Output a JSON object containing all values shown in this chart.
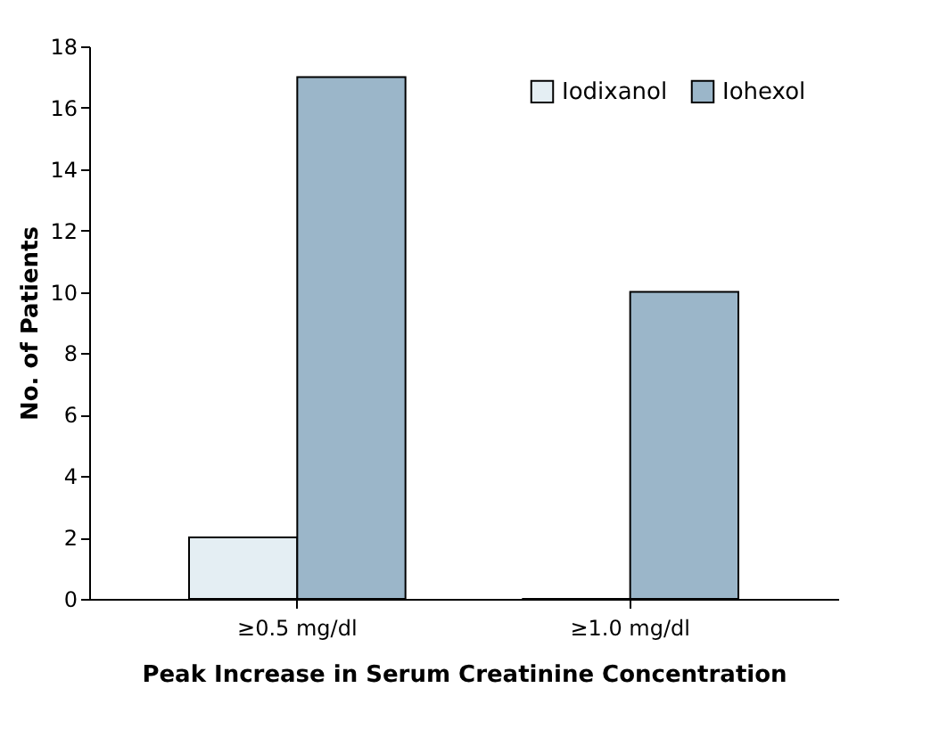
{
  "chart_data": {
    "type": "bar",
    "xlabel": "Peak Increase in Serum Creatinine Concentration",
    "ylabel": "No. of Patients",
    "categories": [
      "≥0.5 mg/dl",
      "≥1.0 mg/dl"
    ],
    "series": [
      {
        "name": "Iodixanol",
        "color": "#e4eef3",
        "values": [
          2,
          0
        ]
      },
      {
        "name": "Iohexol",
        "color": "#9bb6c9",
        "values": [
          17,
          10
        ]
      }
    ],
    "ylim": [
      0,
      18
    ],
    "yticks": [
      0,
      2,
      4,
      6,
      8,
      10,
      12,
      14,
      16,
      18
    ],
    "grid": false,
    "legend": "top right"
  }
}
